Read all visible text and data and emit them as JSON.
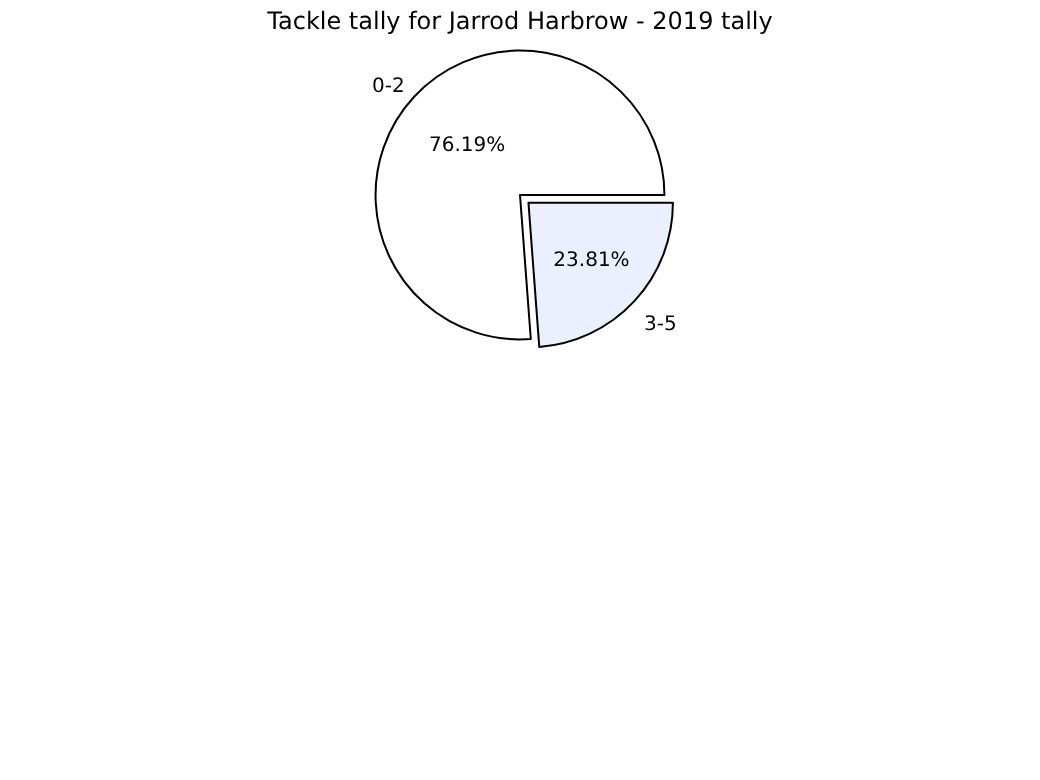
{
  "chart_data": {
    "type": "pie",
    "title": "Tackle tally for Jarrod Harbrow - 2019 tally",
    "categories": [
      "0-2",
      "3-5"
    ],
    "values": [
      76.19,
      23.81
    ],
    "colors": [
      "#ffffff",
      "#eaf0fd"
    ],
    "value_labels": [
      "76.19%",
      "23.81%"
    ]
  }
}
